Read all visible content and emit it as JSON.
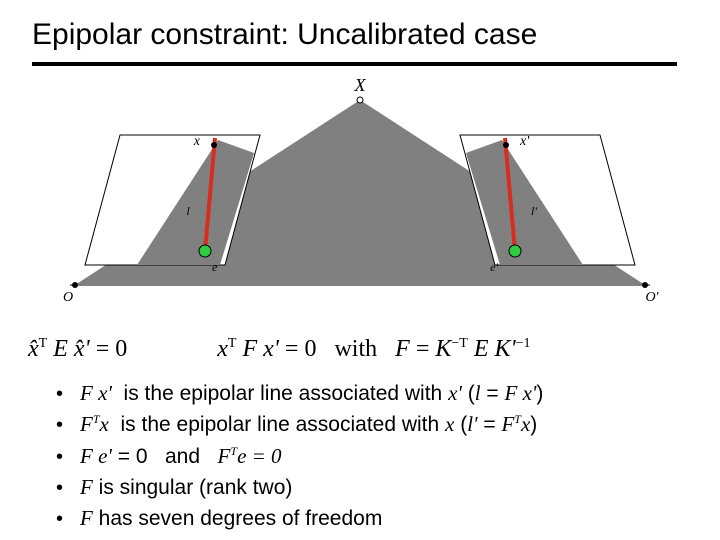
{
  "title": "Epipolar constraint: Uncalibrated case",
  "diagram": {
    "bg_color": "#ffffff",
    "gray_fill": "#808080",
    "plane_stroke": "#000000",
    "epipolar_line_color": "#d62d20",
    "epipolar_line_width": 4,
    "epipole_fill": "#2ecc40",
    "epipole_stroke": "#000000",
    "epipole_r": 6,
    "point_fill": "#000000",
    "labels": {
      "X": "X",
      "x": "x",
      "xp": "x'",
      "l": "l",
      "lp": "l'",
      "e": "e",
      "ep": "e'",
      "O": "O",
      "Op": "O'"
    },
    "label_fontsize_big": 18,
    "label_fontsize": 14,
    "label_fontsize_small": 12,
    "label_family": "Times New Roman, serif"
  },
  "equation": {
    "lhs_hat_xT": "x̂",
    "E": "E",
    "rhs_hat_x": "x̂'",
    "eq_zero": " = 0",
    "xT": "x",
    "F": "F",
    "xp": "x'",
    "with": " with ",
    "Fdef_K": "K",
    "Fdef_E": "E",
    "Fdef_Kp": "K'"
  },
  "bullets": [
    {
      "html": "<i>F x'</i>&nbsp; is the epipolar line associated with <i>x'</i> (<i>l</i> = <i>F x'</i>)"
    },
    {
      "html": "<i>F<sup>T</sup>x</i>&nbsp; is the epipolar line associated with <i>x</i> (<i>l'</i> = <i>F<sup>T</sup>x</i>)"
    },
    {
      "html": "<i>F e'</i> = 0 &nbsp; and &nbsp; <i>F<sup>T</sup>e = 0</i>"
    },
    {
      "html": "<i>F</i> is singular (rank two)"
    },
    {
      "html": "<i>F</i> has seven degrees of freedom"
    }
  ]
}
